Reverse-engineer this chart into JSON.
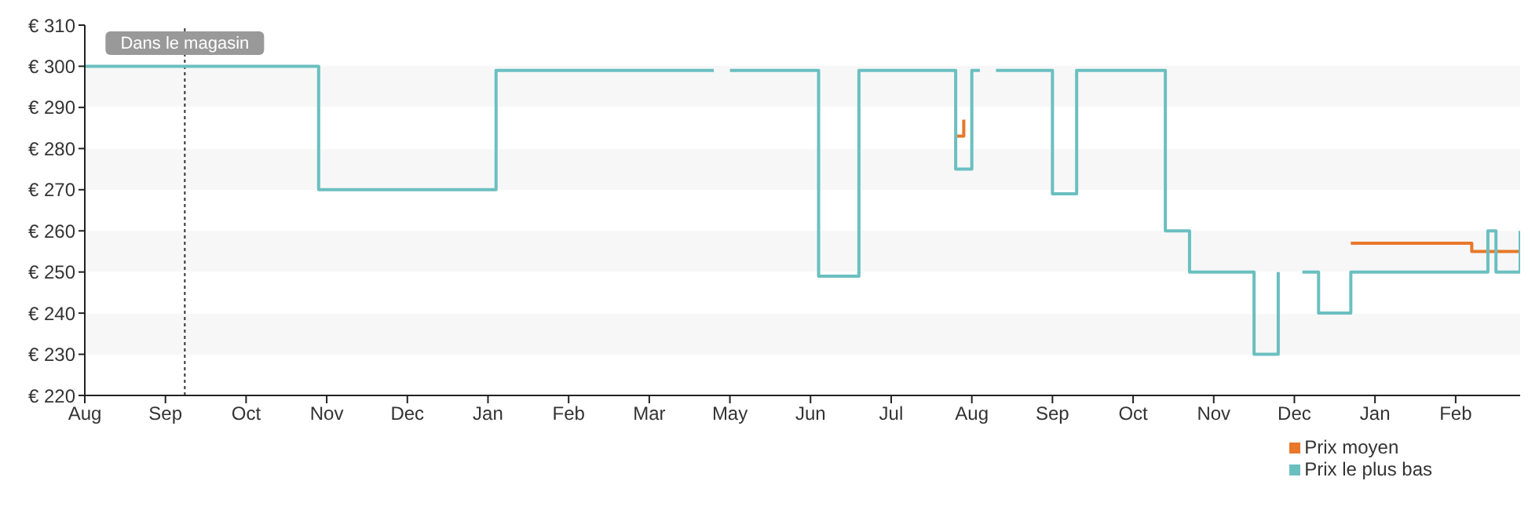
{
  "chart_data": {
    "type": "step",
    "categories": [
      "Aug",
      null,
      null,
      null,
      null,
      null,
      null,
      null,
      null,
      null,
      "Sep",
      null,
      null,
      null,
      null,
      null,
      null,
      null,
      null,
      null,
      "Oct",
      null,
      null,
      null,
      null,
      null,
      null,
      null,
      null,
      null,
      "Nov",
      null,
      null,
      null,
      null,
      null,
      null,
      null,
      null,
      null,
      "Dec",
      null,
      null,
      null,
      null,
      null,
      null,
      null,
      null,
      null,
      "Jan",
      null,
      null,
      null,
      null,
      null,
      null,
      null,
      null,
      null,
      "Feb",
      null,
      null,
      null,
      null,
      null,
      null,
      null,
      null,
      null,
      "Mar",
      null,
      null,
      null,
      null,
      null,
      null,
      null,
      null,
      null,
      "May",
      null,
      null,
      null,
      null,
      null,
      null,
      null,
      null,
      null,
      "Jun",
      null,
      null,
      null,
      null,
      null,
      null,
      null,
      null,
      null,
      "Jul",
      null,
      null,
      null,
      null,
      null,
      null,
      null,
      null,
      null,
      "Aug",
      null,
      null,
      null,
      null,
      null,
      null,
      null,
      null,
      null,
      "Sep",
      null,
      null,
      null,
      null,
      null,
      null,
      null,
      null,
      null,
      "Oct",
      null,
      null,
      null,
      null,
      null,
      null,
      null,
      null,
      null,
      "Nov",
      null,
      null,
      null,
      null,
      null,
      null,
      null,
      null,
      null,
      "Dec",
      null,
      null,
      null,
      null,
      null,
      null,
      null,
      null,
      null,
      "Jan",
      null,
      null,
      null,
      null,
      null,
      null,
      null,
      null,
      null,
      "Feb",
      null,
      null,
      null,
      null,
      null,
      null,
      null,
      null
    ],
    "ylim": [
      220,
      310
    ],
    "yticks": [
      {
        "value": 220,
        "label": "€ 220"
      },
      {
        "value": 230,
        "label": "€ 230"
      },
      {
        "value": 240,
        "label": "€ 240"
      },
      {
        "value": 250,
        "label": "€ 250"
      },
      {
        "value": 260,
        "label": "€ 260"
      },
      {
        "value": 270,
        "label": "€ 270"
      },
      {
        "value": 280,
        "label": "€ 280"
      },
      {
        "value": 290,
        "label": "€ 290"
      },
      {
        "value": 300,
        "label": "€ 300"
      },
      {
        "value": 310,
        "label": "€ 310"
      }
    ],
    "legend": "bottom right",
    "marker": "none",
    "line_style": "solid",
    "annotations": [
      "Dans le magasin"
    ],
    "series": [
      {
        "name": "Prix moyen",
        "color": "#e8782a",
        "values": [
          null,
          null,
          null,
          null,
          null,
          null,
          null,
          null,
          null,
          null,
          null,
          null,
          null,
          null,
          null,
          null,
          null,
          null,
          null,
          null,
          null,
          null,
          null,
          null,
          null,
          null,
          null,
          null,
          null,
          null,
          null,
          null,
          null,
          null,
          null,
          null,
          null,
          null,
          null,
          null,
          null,
          null,
          null,
          null,
          null,
          null,
          null,
          null,
          null,
          null,
          null,
          null,
          null,
          null,
          null,
          null,
          null,
          null,
          null,
          null,
          null,
          null,
          null,
          null,
          null,
          null,
          null,
          null,
          null,
          null,
          null,
          null,
          null,
          null,
          null,
          null,
          null,
          null,
          null,
          null,
          null,
          null,
          null,
          null,
          null,
          null,
          null,
          null,
          null,
          null,
          null,
          null,
          null,
          null,
          null,
          null,
          null,
          null,
          null,
          null,
          null,
          null,
          null,
          null,
          null,
          null,
          null,
          null,
          283,
          287,
          null,
          null,
          null,
          null,
          null,
          null,
          null,
          null,
          null,
          null,
          null,
          null,
          null,
          null,
          null,
          null,
          null,
          null,
          null,
          null,
          null,
          null,
          null,
          null,
          null,
          null,
          null,
          null,
          null,
          null,
          null,
          null,
          null,
          null,
          null,
          null,
          null,
          null,
          null,
          null,
          null,
          null,
          null,
          null,
          null,
          null,
          null,
          257,
          257,
          257,
          257,
          257,
          257,
          257,
          257,
          257,
          257,
          257,
          257,
          257,
          257,
          257,
          255,
          255,
          255,
          255,
          255,
          255,
          255
        ]
      },
      {
        "name": "Prix le plus bas",
        "color": "#6bbfc0",
        "values": [
          300,
          300,
          300,
          300,
          300,
          300,
          300,
          300,
          300,
          300,
          300,
          300,
          300,
          300,
          300,
          300,
          300,
          300,
          300,
          300,
          300,
          300,
          300,
          300,
          300,
          300,
          300,
          300,
          300,
          270,
          270,
          270,
          270,
          270,
          270,
          270,
          270,
          270,
          270,
          270,
          270,
          270,
          270,
          270,
          270,
          270,
          270,
          270,
          270,
          270,
          270,
          299,
          299,
          299,
          299,
          299,
          299,
          299,
          299,
          299,
          299,
          299,
          299,
          299,
          299,
          299,
          299,
          299,
          299,
          299,
          299,
          299,
          299,
          299,
          299,
          299,
          299,
          299,
          299,
          null,
          299,
          299,
          299,
          299,
          299,
          299,
          299,
          299,
          299,
          299,
          299,
          249,
          249,
          249,
          249,
          249,
          299,
          299,
          299,
          299,
          299,
          299,
          299,
          299,
          299,
          299,
          299,
          299,
          275,
          275,
          299,
          299,
          null,
          299,
          299,
          299,
          299,
          299,
          299,
          299,
          269,
          269,
          269,
          299,
          299,
          299,
          299,
          299,
          299,
          299,
          299,
          299,
          299,
          299,
          260,
          260,
          260,
          250,
          250,
          250,
          250,
          250,
          250,
          250,
          250,
          230,
          230,
          230,
          250,
          null,
          null,
          250,
          250,
          240,
          240,
          240,
          240,
          250,
          250,
          250,
          250,
          250,
          250,
          250,
          250,
          250,
          250,
          250,
          250,
          250,
          250,
          250,
          250,
          250,
          260,
          250,
          250,
          250,
          260
        ]
      }
    ]
  }
}
